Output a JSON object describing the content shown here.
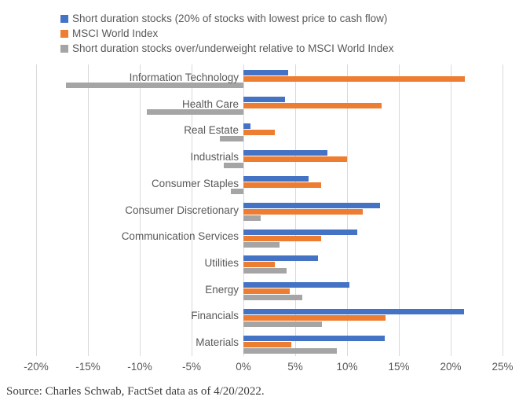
{
  "chart_data": {
    "type": "bar",
    "orientation": "horizontal",
    "categories": [
      "Information Technology",
      "Health Care",
      "Real Estate",
      "Industrials",
      "Consumer Staples",
      "Consumer Discretionary",
      "Communication Services",
      "Utilities",
      "Energy",
      "Financials",
      "Materials"
    ],
    "series": [
      {
        "name": "Short duration stocks (20% of stocks with lowest price to cash flow)",
        "color": "#4472C4",
        "values": [
          4.3,
          4.0,
          0.7,
          8.1,
          6.3,
          13.2,
          11.0,
          7.2,
          10.2,
          21.3,
          13.6
        ]
      },
      {
        "name": "MSCI World Index",
        "color": "#ED7D31",
        "values": [
          21.4,
          13.3,
          3.0,
          10.0,
          7.5,
          11.5,
          7.5,
          3.0,
          4.5,
          13.7,
          4.6
        ]
      },
      {
        "name": "Short duration stocks over/underweight relative to MSCI World Index",
        "color": "#A5A5A5",
        "values": [
          -17.1,
          -9.3,
          -2.3,
          -1.9,
          -1.2,
          1.7,
          3.5,
          4.2,
          5.7,
          7.6,
          9.0
        ]
      }
    ],
    "x_axis": {
      "min": -20,
      "max": 25,
      "step": 5,
      "tick_labels": [
        "-20%",
        "-15%",
        "-10%",
        "-5%",
        "0%",
        "5%",
        "10%",
        "15%",
        "20%",
        "25%"
      ]
    },
    "grid": true,
    "legend_position": "top-left",
    "gridline_color": "#D9D9D9",
    "text_color": "#595959"
  },
  "source": "Source: Charles Schwab, FactSet data as of 4/20/2022."
}
